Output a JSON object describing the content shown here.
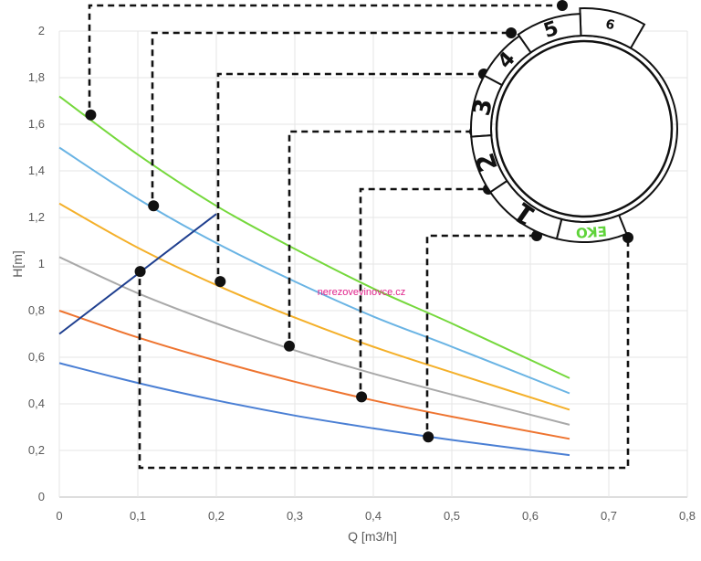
{
  "chart_data": {
    "type": "line",
    "xlabel": "Q [m3/h]",
    "ylabel": "H[m]",
    "xlim": [
      0,
      0.8
    ],
    "ylim": [
      0,
      2
    ],
    "x_ticks": [
      "0",
      "0,1",
      "0,2",
      "0,3",
      "0,4",
      "0,5",
      "0,6",
      "0,7",
      "0,8"
    ],
    "y_ticks": [
      "0",
      "0,2",
      "0,4",
      "0,6",
      "0,8",
      "1",
      "1,2",
      "1,4",
      "1,6",
      "1,8",
      "2"
    ],
    "grid": true,
    "series": [
      {
        "color": "#4a7fd4",
        "x": [
          0,
          0.1,
          0.2,
          0.3,
          0.4,
          0.5,
          0.65
        ],
        "y": [
          0.575,
          0.49,
          0.415,
          0.35,
          0.295,
          0.245,
          0.18
        ]
      },
      {
        "color": "#ee7430",
        "x": [
          0,
          0.1,
          0.2,
          0.3,
          0.4,
          0.5,
          0.65
        ],
        "y": [
          0.8,
          0.685,
          0.585,
          0.495,
          0.415,
          0.345,
          0.25
        ]
      },
      {
        "color": "#a9a9a9",
        "x": [
          0,
          0.1,
          0.2,
          0.3,
          0.4,
          0.5,
          0.65
        ],
        "y": [
          1.03,
          0.875,
          0.745,
          0.63,
          0.53,
          0.44,
          0.31
        ]
      },
      {
        "color": "#f4b02a",
        "x": [
          0,
          0.1,
          0.2,
          0.3,
          0.4,
          0.5,
          0.65
        ],
        "y": [
          1.26,
          1.07,
          0.91,
          0.77,
          0.645,
          0.535,
          0.375
        ]
      },
      {
        "color": "#6ab4e4",
        "x": [
          0,
          0.1,
          0.2,
          0.3,
          0.4,
          0.5,
          0.65
        ],
        "y": [
          1.5,
          1.28,
          1.09,
          0.925,
          0.775,
          0.645,
          0.445
        ]
      },
      {
        "color": "#75d83c",
        "x": [
          0,
          0.1,
          0.2,
          0.3,
          0.4,
          0.5,
          0.65
        ],
        "y": [
          1.72,
          1.47,
          1.25,
          1.065,
          0.895,
          0.745,
          0.51
        ]
      },
      {
        "color": "#1f3f8f",
        "x": [
          0,
          0.2
        ],
        "y": [
          0.7,
          1.215
        ]
      }
    ],
    "markers": [
      {
        "label": "6",
        "x": 0.04,
        "y": 1.64
      },
      {
        "label": "5",
        "x": 0.12,
        "y": 1.25
      },
      {
        "label": "4",
        "x": 0.205,
        "y": 0.925
      },
      {
        "label": "3",
        "x": 0.293,
        "y": 0.648
      },
      {
        "label": "2",
        "x": 0.385,
        "y": 0.43
      },
      {
        "label": "1",
        "x": 0.47,
        "y": 0.258
      },
      {
        "label": "EKO",
        "x": 0.103,
        "y": 0.968
      }
    ],
    "annotations": {
      "watermark": "nerezovevinovce.cz",
      "dial_settings": [
        "6",
        "5",
        "4",
        "3",
        "2",
        "1",
        "EKO"
      ]
    }
  }
}
